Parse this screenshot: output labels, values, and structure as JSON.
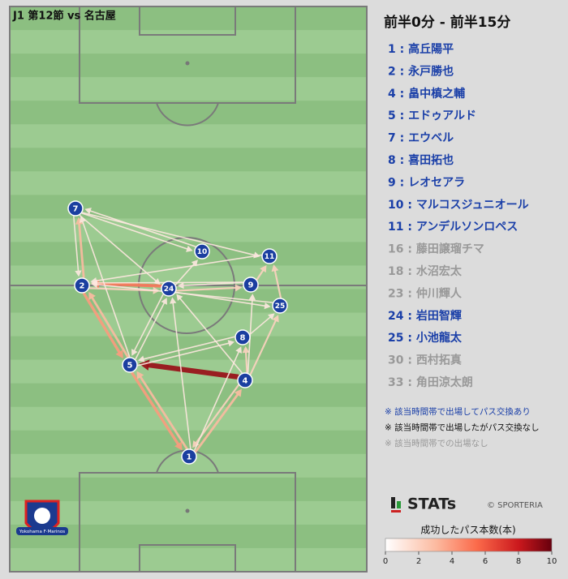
{
  "header": {
    "match": "J1 第12節 vs 名古屋",
    "period": "前半0分 - 前半15分"
  },
  "nodes": [
    {
      "label": "1"
    },
    {
      "label": "2"
    },
    {
      "label": "4"
    },
    {
      "label": "5"
    },
    {
      "label": "7"
    },
    {
      "label": "8"
    },
    {
      "label": "9"
    },
    {
      "label": "10"
    },
    {
      "label": "11"
    },
    {
      "label": "24"
    },
    {
      "label": "25"
    }
  ],
  "passes": [
    {
      "from": "4",
      "to": "5",
      "count": 9
    },
    {
      "from": "24",
      "to": "2",
      "count": 5
    },
    {
      "from": "2",
      "to": "5",
      "count": 4
    },
    {
      "from": "5",
      "to": "2",
      "count": 3
    },
    {
      "from": "5",
      "to": "1",
      "count": 4
    },
    {
      "from": "1",
      "to": "5",
      "count": 3
    },
    {
      "from": "2",
      "to": "7",
      "count": 3
    },
    {
      "from": "1",
      "to": "4",
      "count": 3
    },
    {
      "from": "4",
      "to": "1",
      "count": 2
    },
    {
      "from": "4",
      "to": "25",
      "count": 2
    },
    {
      "from": "25",
      "to": "11",
      "count": 2
    },
    {
      "from": "4",
      "to": "8",
      "count": 2
    },
    {
      "from": "9",
      "to": "11",
      "count": 2
    },
    {
      "from": "2",
      "to": "24",
      "count": 2
    },
    {
      "from": "24",
      "to": "9",
      "count": 2
    },
    {
      "from": "7",
      "to": "10",
      "count": 1
    },
    {
      "from": "7",
      "to": "11",
      "count": 1
    },
    {
      "from": "7",
      "to": "24",
      "count": 1
    },
    {
      "from": "9",
      "to": "24",
      "count": 1
    },
    {
      "from": "5",
      "to": "24",
      "count": 1
    },
    {
      "from": "24",
      "to": "5",
      "count": 1
    },
    {
      "from": "25",
      "to": "2",
      "count": 1
    },
    {
      "from": "9",
      "to": "2",
      "count": 1
    },
    {
      "from": "8",
      "to": "25",
      "count": 1
    },
    {
      "from": "4",
      "to": "9",
      "count": 1
    },
    {
      "from": "11",
      "to": "2",
      "count": 1
    },
    {
      "from": "1",
      "to": "8",
      "count": 1
    },
    {
      "from": "5",
      "to": "8",
      "count": 1
    },
    {
      "from": "10",
      "to": "7",
      "count": 1
    },
    {
      "from": "24",
      "to": "10",
      "count": 1
    },
    {
      "from": "7",
      "to": "2",
      "count": 1
    },
    {
      "from": "5",
      "to": "7",
      "count": 1
    },
    {
      "from": "8",
      "to": "5",
      "count": 1
    },
    {
      "from": "4",
      "to": "24",
      "count": 1
    },
    {
      "from": "1",
      "to": "24",
      "count": 1
    },
    {
      "from": "24",
      "to": "25",
      "count": 1
    }
  ],
  "roster": [
    {
      "label": "1 : 高丘陽平",
      "status": "active"
    },
    {
      "label": "2 : 永戸勝也",
      "status": "active"
    },
    {
      "label": "4 : 畠中槙之輔",
      "status": "active"
    },
    {
      "label": "5 : エドゥアルド",
      "status": "active"
    },
    {
      "label": "7 : エウベル",
      "status": "active"
    },
    {
      "label": "8 : 喜田拓也",
      "status": "active"
    },
    {
      "label": "9 : レオセアラ",
      "status": "active"
    },
    {
      "label": "10 : マルコスジュニオール",
      "status": "active"
    },
    {
      "label": "11 : アンデルソンロペス",
      "status": "active"
    },
    {
      "label": "16 : 藤田譲瑠チマ",
      "status": "absent"
    },
    {
      "label": "18 : 水沼宏太",
      "status": "absent"
    },
    {
      "label": "23 : 仲川輝人",
      "status": "absent"
    },
    {
      "label": "24 : 岩田智輝",
      "status": "active"
    },
    {
      "label": "25 : 小池龍太",
      "status": "active"
    },
    {
      "label": "30 : 西村拓真",
      "status": "absent"
    },
    {
      "label": "33 : 角田涼太朗",
      "status": "absent"
    }
  ],
  "notes": [
    {
      "text": "※ 該当時間帯で出場してパス交換あり",
      "status": "active"
    },
    {
      "text": "※ 該当時間帯で出場したがパス交換なし",
      "status": "passive"
    },
    {
      "text": "※ 該当時間帯での出場なし",
      "status": "absent"
    }
  ],
  "branding": {
    "logo": "STATs",
    "credit": "© SPORTERIA",
    "club": "Yokohama F·Marinos"
  },
  "colorbar": {
    "title": "成功したパス本数(本)",
    "range": [
      0,
      10
    ],
    "ticks": [
      0,
      2,
      4,
      6,
      8,
      10
    ]
  }
}
